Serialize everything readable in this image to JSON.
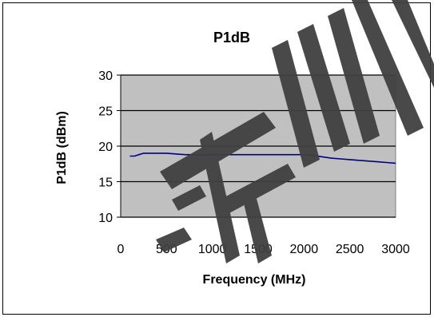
{
  "chart_data": {
    "type": "line",
    "title": "P1dB",
    "xlabel": "Frequency (MHz)",
    "ylabel": "P1dB (dBm)",
    "xlim": [
      0,
      3000
    ],
    "ylim": [
      10,
      30
    ],
    "x_ticks": [
      "0",
      "500",
      "1000",
      "1500",
      "2000",
      "2500",
      "3000"
    ],
    "y_ticks": [
      "10",
      "15",
      "20",
      "25",
      "30"
    ],
    "grid": "horizontal",
    "plot_background": "#c0c0c0",
    "series": [
      {
        "color": "#000080",
        "x": [
          100,
          150,
          200,
          250,
          300,
          400,
          500,
          600,
          700,
          800,
          900,
          1000,
          1200,
          1400,
          1600,
          1800,
          2000,
          2100,
          2200,
          2300,
          2400,
          2500,
          2600,
          2700,
          2800,
          2900,
          3000
        ],
        "y": [
          18.6,
          18.6,
          18.8,
          19.0,
          19.0,
          19.0,
          19.0,
          18.9,
          18.8,
          18.8,
          18.8,
          18.8,
          18.8,
          18.8,
          18.8,
          18.8,
          18.8,
          18.7,
          18.5,
          18.3,
          18.2,
          18.1,
          18.0,
          17.9,
          17.8,
          17.7,
          17.6
        ]
      }
    ]
  },
  "watermark": {
    "text": "芳州",
    "color": "#404040"
  }
}
